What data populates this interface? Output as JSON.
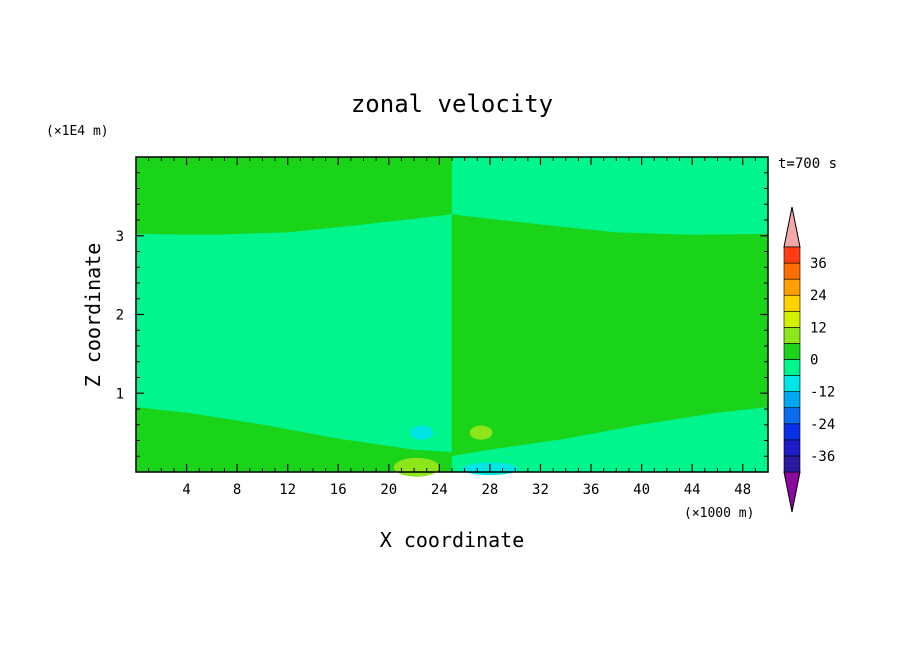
{
  "chart_data": {
    "type": "heatmap",
    "title": "zonal velocity",
    "xlabel": "X coordinate",
    "ylabel": "Z coordinate",
    "x_unit": "(×1000 m)",
    "y_unit": "(×1E4 m)",
    "time_label": "t=700 s",
    "xlim": [
      0,
      50
    ],
    "ylim": [
      0,
      4
    ],
    "x_ticks": [
      4,
      8,
      12,
      16,
      20,
      24,
      28,
      32,
      36,
      40,
      44,
      48
    ],
    "x_tick_labels": [
      "4",
      "8",
      "12",
      "16",
      "20",
      "24",
      "28",
      "32",
      "36",
      "40",
      "44",
      "48"
    ],
    "y_ticks": [
      1,
      2,
      3
    ],
    "y_tick_labels": [
      "1",
      "2",
      "3"
    ],
    "colorbar": {
      "levels": [
        -42,
        -36,
        -30,
        -24,
        -18,
        -12,
        -6,
        0,
        6,
        12,
        18,
        24,
        30,
        36,
        42
      ],
      "labels": [
        "36",
        "24",
        "12",
        "0",
        "-12",
        "-24",
        "-36"
      ],
      "label_values": [
        36,
        24,
        12,
        0,
        -12,
        -24,
        -36
      ],
      "colors": [
        "#2a1aa0",
        "#1c1cc8",
        "#0a30e8",
        "#0a6cf0",
        "#00a8f0",
        "#00e6e6",
        "#00f58c",
        "#19d419",
        "#8ce619",
        "#d2f000",
        "#ffd200",
        "#ffa000",
        "#ff6e00",
        "#ff3c14",
        "#ff1414"
      ],
      "over_color": "#f5a8a8",
      "under_color": "#8a0aa0"
    },
    "regions": [
      {
        "name": "left-top band",
        "value": 3,
        "color": "#19d419",
        "polygon": [
          [
            0,
            3.02
          ],
          [
            6,
            3.01
          ],
          [
            12,
            3.04
          ],
          [
            18,
            3.14
          ],
          [
            24,
            3.25
          ],
          [
            25,
            3.27
          ],
          [
            25,
            4
          ],
          [
            0,
            4
          ]
        ]
      },
      {
        "name": "left middle band",
        "value": -3,
        "color": "#00f58c",
        "polygon": [
          [
            0,
            0.82
          ],
          [
            4,
            0.75
          ],
          [
            10,
            0.6
          ],
          [
            16,
            0.42
          ],
          [
            22,
            0.28
          ],
          [
            25,
            0.25
          ],
          [
            25,
            3.27
          ],
          [
            24,
            3.25
          ],
          [
            18,
            3.14
          ],
          [
            12,
            3.04
          ],
          [
            6,
            3.01
          ],
          [
            0,
            3.02
          ]
        ]
      },
      {
        "name": "left bottom band",
        "value": 3,
        "color": "#19d419",
        "polygon": [
          [
            0,
            0
          ],
          [
            25,
            0
          ],
          [
            25,
            0.25
          ],
          [
            22,
            0.28
          ],
          [
            16,
            0.42
          ],
          [
            10,
            0.6
          ],
          [
            4,
            0.75
          ],
          [
            0,
            0.82
          ]
        ]
      },
      {
        "name": "right-top band",
        "value": -3,
        "color": "#00f58c",
        "polygon": [
          [
            25,
            3.27
          ],
          [
            26,
            3.25
          ],
          [
            32,
            3.14
          ],
          [
            38,
            3.04
          ],
          [
            44,
            3.01
          ],
          [
            50,
            3.02
          ],
          [
            50,
            4
          ],
          [
            25,
            4
          ]
        ]
      },
      {
        "name": "right middle band",
        "value": 3,
        "color": "#19d419",
        "polygon": [
          [
            25,
            0.2
          ],
          [
            28,
            0.28
          ],
          [
            34,
            0.42
          ],
          [
            40,
            0.6
          ],
          [
            46,
            0.75
          ],
          [
            50,
            0.82
          ],
          [
            50,
            3.02
          ],
          [
            44,
            3.01
          ],
          [
            38,
            3.04
          ],
          [
            32,
            3.14
          ],
          [
            26,
            3.25
          ],
          [
            25,
            3.27
          ]
        ]
      },
      {
        "name": "right bottom band",
        "value": -3,
        "color": "#00f58c",
        "polygon": [
          [
            25,
            0
          ],
          [
            50,
            0
          ],
          [
            50,
            0.82
          ],
          [
            46,
            0.75
          ],
          [
            40,
            0.6
          ],
          [
            34,
            0.42
          ],
          [
            28,
            0.28
          ],
          [
            25,
            0.2
          ]
        ]
      }
    ],
    "blobs": [
      {
        "name": "negative blob",
        "value": -8,
        "color": "#00e6e6",
        "cx": 22.6,
        "cy": 0.5,
        "rx": 0.9,
        "ry": 0.09
      },
      {
        "name": "positive blob",
        "value": 8,
        "color": "#8ce619",
        "cx": 27.3,
        "cy": 0.5,
        "rx": 0.9,
        "ry": 0.09
      },
      {
        "name": "positive bottom blob",
        "value": 8,
        "color": "#8ce619",
        "cx": 22.2,
        "cy": 0.06,
        "rx": 1.8,
        "ry": 0.12
      },
      {
        "name": "negative bottom blob",
        "value": -8,
        "color": "#00e6e6",
        "cx": 28.0,
        "cy": 0.04,
        "rx": 2.2,
        "ry": 0.08
      }
    ]
  }
}
